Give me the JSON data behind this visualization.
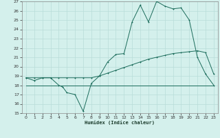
{
  "xlabel": "Humidex (Indice chaleur)",
  "bg_color": "#d4f0ec",
  "grid_color": "#b8ddd8",
  "line_color": "#1a6b5a",
  "xmin": -0.5,
  "xmax": 23.5,
  "ymin": 15,
  "ymax": 27,
  "yticks": [
    15,
    16,
    17,
    18,
    19,
    20,
    21,
    22,
    23,
    24,
    25,
    26,
    27
  ],
  "xticks": [
    0,
    1,
    2,
    3,
    4,
    5,
    6,
    7,
    8,
    9,
    10,
    11,
    12,
    13,
    14,
    15,
    16,
    17,
    18,
    19,
    20,
    21,
    22,
    23
  ],
  "s1_x": [
    0,
    1,
    2,
    3,
    4,
    4.5,
    5,
    6,
    7,
    8,
    9,
    10,
    11,
    12,
    13,
    14,
    15,
    16,
    17,
    18,
    19,
    20,
    21,
    22,
    23
  ],
  "s1_y": [
    18.8,
    18.5,
    18.8,
    18.8,
    18.0,
    17.8,
    17.2,
    17.0,
    15.2,
    18.2,
    19.0,
    20.5,
    21.3,
    21.4,
    24.8,
    26.6,
    24.8,
    27.0,
    26.5,
    26.2,
    26.3,
    25.0,
    21.0,
    19.2,
    18.0
  ],
  "s2_x": [
    0,
    1,
    2,
    3,
    4,
    5,
    6,
    7,
    8,
    9,
    10,
    11,
    12,
    13,
    14,
    15,
    16,
    17,
    18,
    19,
    20,
    21,
    22,
    23
  ],
  "s2_y": [
    18.8,
    18.8,
    18.8,
    18.8,
    18.8,
    18.8,
    18.8,
    18.8,
    18.8,
    19.0,
    19.3,
    19.6,
    19.9,
    20.2,
    20.5,
    20.8,
    21.0,
    21.2,
    21.4,
    21.5,
    21.6,
    21.7,
    21.5,
    19.2
  ],
  "s3_x": [
    0,
    1,
    2,
    3,
    4,
    5,
    6,
    7,
    8,
    9,
    10,
    11,
    12,
    13,
    14,
    15,
    16,
    17,
    18,
    19,
    20,
    21,
    22,
    23
  ],
  "s3_y": [
    18.0,
    18.0,
    18.0,
    18.0,
    18.0,
    18.0,
    18.0,
    18.0,
    18.0,
    18.0,
    18.0,
    18.0,
    18.0,
    18.0,
    18.0,
    18.0,
    18.0,
    18.0,
    18.0,
    18.0,
    18.0,
    18.0,
    18.0,
    18.0
  ]
}
